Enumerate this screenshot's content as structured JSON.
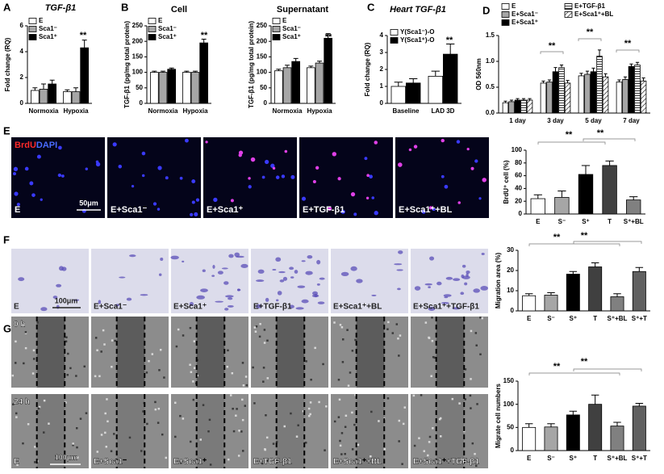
{
  "labels": [
    "A",
    "B",
    "C",
    "D",
    "E",
    "F",
    "G"
  ],
  "chart_data": [
    {
      "type": "bar",
      "title": "TGF-β1",
      "ylabel": "Fold change (RQ)",
      "categories": [
        "Normoxia",
        "Hypoxia"
      ],
      "series": [
        {
          "name": "E",
          "color": "#ffffff",
          "values": [
            1.0,
            0.9
          ],
          "errors": [
            0.2,
            0.15
          ]
        },
        {
          "name": "Sca1⁻",
          "color": "#a6a6a6",
          "values": [
            1.1,
            0.9
          ],
          "errors": [
            0.4,
            0.3
          ]
        },
        {
          "name": "Sca1⁺",
          "color": "#000000",
          "values": [
            1.5,
            4.3
          ],
          "errors": [
            0.3,
            0.6
          ]
        }
      ],
      "ylim": [
        0,
        6
      ],
      "yticks": [
        0,
        2,
        4,
        6
      ],
      "annotations": [
        "**"
      ]
    },
    {
      "type": "bar",
      "title": "Cell",
      "ylabel": "TGF-β1 (pg/mg total protein)",
      "categories": [
        "Normoxia",
        "Hypoxia"
      ],
      "series": [
        {
          "name": "E",
          "color": "#ffffff",
          "values": [
            100,
            100
          ],
          "errors": [
            4,
            4
          ]
        },
        {
          "name": "Sca1⁻",
          "color": "#a6a6a6",
          "values": [
            100,
            100
          ],
          "errors": [
            4,
            4
          ]
        },
        {
          "name": "Sca1⁺",
          "color": "#000000",
          "values": [
            110,
            195
          ],
          "errors": [
            4,
            12
          ]
        }
      ],
      "ylim": [
        0,
        250
      ],
      "yticks": [
        0,
        50,
        100,
        150,
        200,
        250
      ],
      "annotations": [
        "**"
      ]
    },
    {
      "type": "bar",
      "title": "Supernatant",
      "ylabel": "TGF-β1 (pg/mg total protein)",
      "categories": [
        "Normoxia",
        "Hypoxia"
      ],
      "series": [
        {
          "name": "E",
          "color": "#ffffff",
          "values": [
            105,
            115
          ],
          "errors": [
            5,
            5
          ]
        },
        {
          "name": "Sca1⁻",
          "color": "#a6a6a6",
          "values": [
            115,
            130
          ],
          "errors": [
            8,
            6
          ]
        },
        {
          "name": "Sca1⁺",
          "color": "#000000",
          "values": [
            135,
            210
          ],
          "errors": [
            10,
            15
          ]
        }
      ],
      "ylim": [
        0,
        250
      ],
      "yticks": [
        0,
        50,
        100,
        150,
        200,
        250
      ],
      "annotations": [
        "**"
      ]
    },
    {
      "type": "bar",
      "title": "Heart TGF-β1",
      "ylabel": "Fold change (RQ)",
      "categories": [
        "Baseline",
        "LAD 3D"
      ],
      "series": [
        {
          "name": "Y(Sca1⁻)-O",
          "color": "#ffffff",
          "values": [
            1.0,
            1.6
          ],
          "errors": [
            0.25,
            0.3
          ]
        },
        {
          "name": "Y(Sca1⁺)-O",
          "color": "#000000",
          "values": [
            1.2,
            2.9
          ],
          "errors": [
            0.25,
            0.6
          ]
        }
      ],
      "ylim": [
        0,
        4
      ],
      "yticks": [
        0,
        1,
        2,
        3,
        4
      ],
      "annotations": [
        "**"
      ]
    },
    {
      "type": "bar",
      "ylabel": "OD 560nm",
      "categories": [
        "1 day",
        "3 day",
        "5 day",
        "7 day"
      ],
      "series": [
        {
          "name": "E",
          "color": "#ffffff",
          "values": [
            0.2,
            0.58,
            0.72,
            0.6
          ],
          "errors": [
            0.03,
            0.04,
            0.05,
            0.04
          ]
        },
        {
          "name": "E+Sca1⁻",
          "color": "#a6a6a6",
          "values": [
            0.22,
            0.6,
            0.75,
            0.65
          ],
          "errors": [
            0.03,
            0.04,
            0.06,
            0.05
          ]
        },
        {
          "name": "E+Sca1⁺",
          "color": "#000000",
          "values": [
            0.25,
            0.8,
            0.8,
            0.9
          ],
          "errors": [
            0.03,
            0.08,
            0.07,
            0.05
          ]
        },
        {
          "name": "E+TGF-β1",
          "color": "#ffffff",
          "pattern": "horizontal",
          "values": [
            0.25,
            0.88,
            1.1,
            0.93
          ],
          "errors": [
            0.03,
            0.05,
            0.12,
            0.05
          ]
        },
        {
          "name": "E+Sca1⁺+BL",
          "color": "#ffffff",
          "pattern": "diagonal",
          "values": [
            0.25,
            0.58,
            0.7,
            0.62
          ],
          "errors": [
            0.03,
            0.05,
            0.06,
            0.06
          ]
        }
      ],
      "ylim": [
        0,
        1.5
      ],
      "yticks": [
        {
          "value": 0,
          "label": "0.0"
        },
        0.5,
        {
          "value": 1,
          "label": "1.0"
        },
        1.5
      ],
      "annotations": [
        "**",
        "**",
        "**"
      ]
    },
    {
      "type": "bar",
      "ylabel": "BrdU⁺ cell (%)",
      "categories": [
        "E",
        "S⁻",
        "S⁺",
        "T",
        "S⁺+BL"
      ],
      "values": [
        24,
        26,
        62,
        76,
        22
      ],
      "errors": [
        6,
        10,
        14,
        7,
        5
      ],
      "colors": [
        "#ffffff",
        "#a6a6a6",
        "#000000",
        "#404040",
        "#808080"
      ],
      "ylim": [
        0,
        100
      ],
      "yticks": [
        0,
        20,
        40,
        60,
        80,
        100
      ],
      "annotations": [
        "**",
        "**"
      ]
    },
    {
      "type": "bar",
      "ylabel": "Migration area (%)",
      "categories": [
        "E",
        "S⁻",
        "S⁺",
        "T",
        "S⁺+BL",
        "S⁺+T"
      ],
      "values": [
        7.5,
        7.8,
        18.2,
        21.8,
        7,
        19.5
      ],
      "errors": [
        1,
        1.2,
        1.3,
        2,
        1.5,
        2
      ],
      "colors": [
        "#ffffff",
        "#a6a6a6",
        "#000000",
        "#404040",
        "#808080",
        "#606060"
      ],
      "ylim": [
        0,
        30
      ],
      "yticks": [
        0,
        10,
        20,
        30
      ],
      "annotations": [
        "**",
        "**"
      ]
    },
    {
      "type": "bar",
      "ylabel": "Migrate cell numbers",
      "categories": [
        "E",
        "S⁻",
        "S⁺",
        "T",
        "S⁺+BL",
        "S⁺+T"
      ],
      "values": [
        50,
        51,
        77,
        100,
        53,
        96
      ],
      "errors": [
        8,
        7,
        8,
        20,
        8,
        6
      ],
      "colors": [
        "#ffffff",
        "#a6a6a6",
        "#000000",
        "#404040",
        "#808080",
        "#606060"
      ],
      "ylim": [
        0,
        150
      ],
      "yticks": [
        0,
        50,
        100,
        150
      ],
      "annotations": [
        "**",
        "**"
      ]
    }
  ],
  "images": {
    "E": {
      "stain": [
        "BrdU",
        "DAPI"
      ],
      "captions": [
        "E",
        "E+Sca1⁻",
        "E+Sca1⁺",
        "E+TGF-β1",
        "E+Sca1⁺+BL"
      ],
      "scale": "50μm"
    },
    "F": {
      "captions": [
        "E",
        "E+Sca1⁻",
        "E+Sca1⁺",
        "E+TGF-β1",
        "E+Sca1⁺+BL",
        "E+Sca1⁺+TGF-β1"
      ],
      "scale": "100μm"
    },
    "G": {
      "rows": [
        "0 h",
        "24 h"
      ],
      "captions": [
        "E",
        "E+Sca1⁻",
        "E+Sca1⁺",
        "E+TGF-β1",
        "E+Sca1⁺+BL",
        "E+Sca1⁺+TGF-β1"
      ],
      "scale": "100μm"
    }
  }
}
